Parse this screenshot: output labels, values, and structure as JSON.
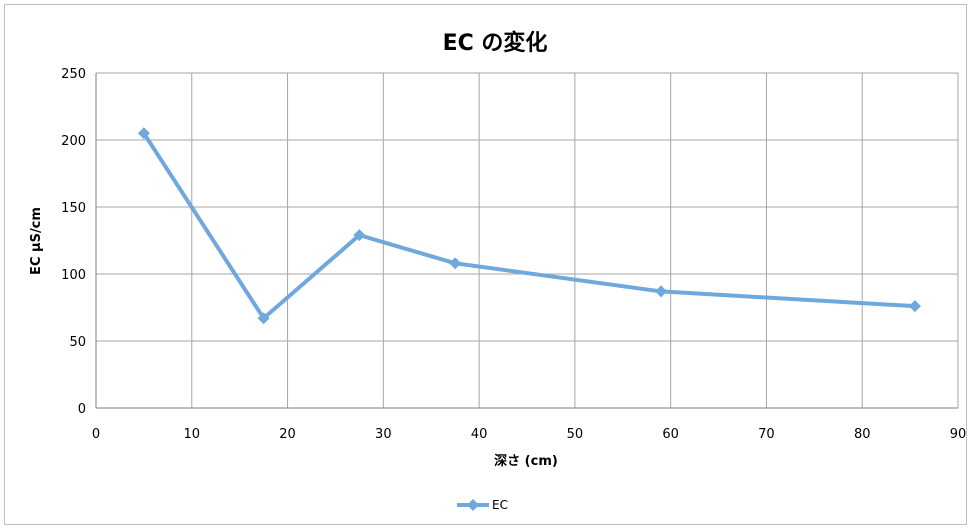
{
  "chart_data": {
    "type": "scatter",
    "title": "EC の変化",
    "xlabel": "深さ (cm)",
    "ylabel": "EC µS/cm",
    "xlim": [
      0,
      90
    ],
    "ylim": [
      0,
      250
    ],
    "x_ticks": [
      0,
      10,
      20,
      30,
      40,
      50,
      60,
      70,
      80,
      90
    ],
    "y_ticks": [
      0,
      50,
      100,
      150,
      200,
      250
    ],
    "grid": true,
    "legend_position": "bottom",
    "series": [
      {
        "name": "EC",
        "color": "#6fa8dc",
        "marker": "diamond",
        "x": [
          5,
          17.5,
          27.5,
          37.5,
          59,
          85.5
        ],
        "y": [
          205,
          67,
          129,
          108,
          87,
          76
        ]
      }
    ]
  }
}
